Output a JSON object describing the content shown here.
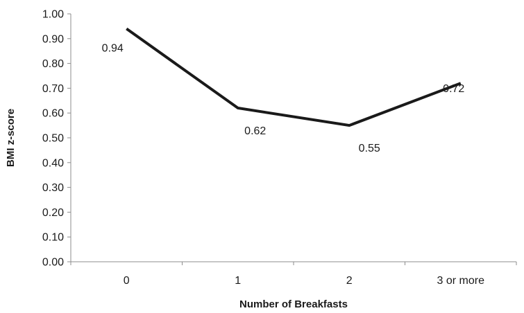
{
  "chart_data": {
    "type": "line",
    "categories": [
      "0",
      "1",
      "2",
      "3 or more"
    ],
    "series": [
      {
        "values": [
          0.94,
          0.62,
          0.55,
          0.72
        ]
      }
    ],
    "data_labels": [
      "0.94",
      "0.62",
      "0.55",
      "0.72"
    ],
    "y_ticks": [
      "0.00",
      "0.10",
      "0.20",
      "0.30",
      "0.40",
      "0.50",
      "0.60",
      "0.70",
      "0.80",
      "0.90",
      "1.00"
    ],
    "xlabel": "Number of Breakfasts",
    "ylabel": "BMI z-score",
    "ylim": [
      0,
      1.0
    ],
    "ystep": 0.1,
    "grid": false,
    "legend": "none",
    "line_color": "#1a1a1a"
  }
}
